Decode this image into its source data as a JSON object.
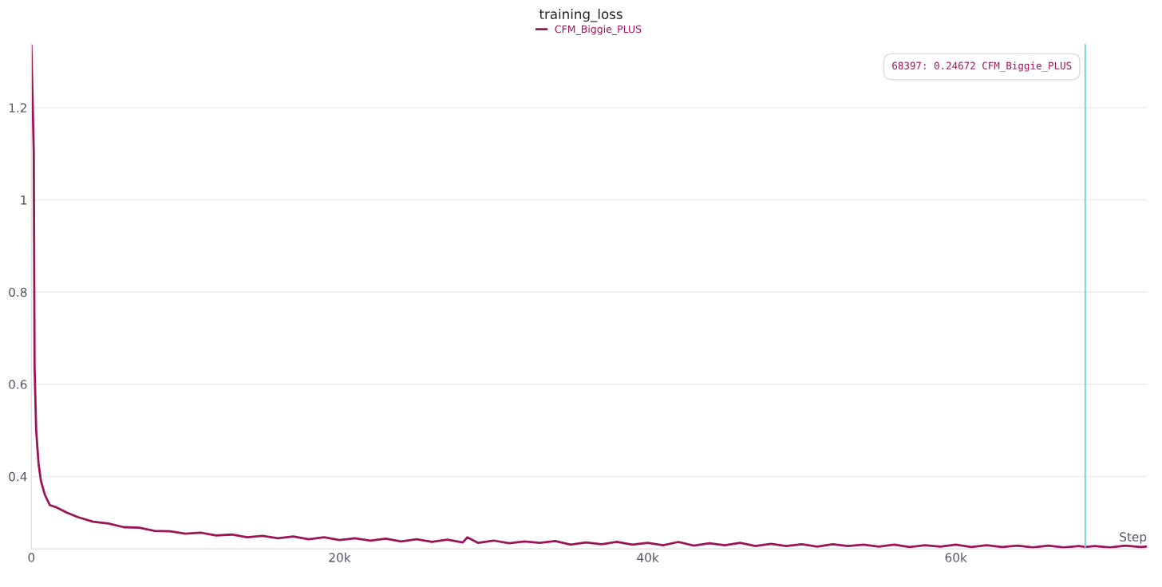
{
  "chart_data": {
    "type": "line",
    "title": "training_loss",
    "xlabel": "Step",
    "xlim": [
      0,
      72400
    ],
    "ylim": [
      0.243,
      1.338
    ],
    "xticks": [
      0,
      {
        "value": 20000,
        "label": "20k"
      },
      {
        "value": 40000,
        "label": "40k"
      },
      {
        "value": 60000,
        "label": "60k"
      }
    ],
    "yticks": [
      0.4,
      0.6,
      0.8,
      1,
      1.2
    ],
    "grid": "y",
    "legend": "top",
    "line_style": "solid",
    "marker": "none",
    "ref_lines": [
      {
        "axis": "x",
        "value": 68397,
        "color": "#5fd3e0"
      }
    ],
    "annotations": [
      "68397: 0.24672 CFM_Biggie_PLUS"
    ],
    "series": [
      {
        "name": "CFM_Biggie_PLUS",
        "color": "#9c1458",
        "x": [
          0,
          155,
          207,
          311,
          466,
          622,
          881,
          1192,
          1554,
          2332,
          3000,
          4000,
          5000,
          6000,
          7000,
          8000,
          9000,
          10000,
          11000,
          12000,
          13000,
          14000,
          15000,
          16000,
          17000,
          18000,
          19000,
          20000,
          21000,
          22000,
          23000,
          24000,
          25000,
          26000,
          27000,
          28000,
          28300,
          29000,
          30000,
          31000,
          32000,
          33000,
          34000,
          35000,
          36000,
          37000,
          38000,
          39000,
          40000,
          41000,
          42000,
          43000,
          44000,
          45000,
          46000,
          47000,
          48000,
          49000,
          50000,
          51000,
          52000,
          53000,
          54000,
          55000,
          56000,
          57000,
          58000,
          59000,
          60000,
          61000,
          62000,
          63000,
          64000,
          65000,
          66000,
          67000,
          68000,
          68397,
          69000,
          70000,
          71000,
          72000,
          72400
        ],
        "values": [
          1.334,
          1.105,
          0.64,
          0.5,
          0.428,
          0.39,
          0.36,
          0.338,
          0.334,
          0.321,
          0.312,
          0.302,
          0.298,
          0.29,
          0.289,
          0.282,
          0.281,
          0.276,
          0.278,
          0.272,
          0.274,
          0.268,
          0.271,
          0.266,
          0.27,
          0.264,
          0.268,
          0.262,
          0.266,
          0.261,
          0.265,
          0.259,
          0.264,
          0.258,
          0.263,
          0.257,
          0.268,
          0.256,
          0.261,
          0.255,
          0.259,
          0.256,
          0.26,
          0.252,
          0.257,
          0.253,
          0.258,
          0.252,
          0.256,
          0.251,
          0.258,
          0.25,
          0.255,
          0.251,
          0.256,
          0.249,
          0.254,
          0.249,
          0.253,
          0.248,
          0.253,
          0.249,
          0.252,
          0.248,
          0.252,
          0.247,
          0.251,
          0.248,
          0.252,
          0.247,
          0.251,
          0.247,
          0.25,
          0.246,
          0.25,
          0.246,
          0.249,
          0.247,
          0.249,
          0.246,
          0.25,
          0.247,
          0.248
        ]
      }
    ]
  }
}
